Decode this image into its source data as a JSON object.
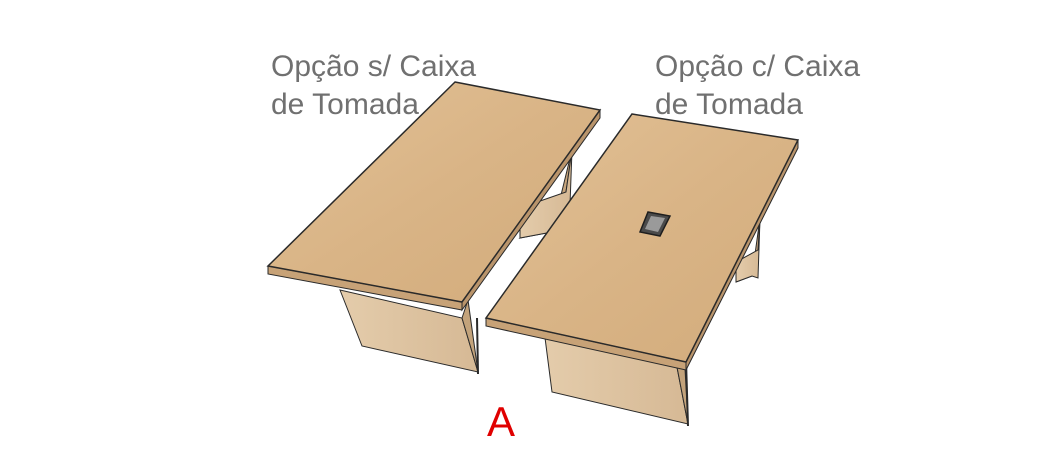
{
  "labels": {
    "without_box": {
      "line1": "Opção s/ Caixa",
      "line2": "de Tomada"
    },
    "with_box": {
      "line1": "Opção c/ Caixa",
      "line2": "de Tomada"
    }
  },
  "variant_letter": "A",
  "colors": {
    "tabletop": "#dcb88a",
    "tabletop_edge": "#b7936a",
    "leg_front": "#ddc3a1",
    "leg_side": "#c7a983",
    "outline": "#2a2a2a",
    "caption": "#707070",
    "variant_letter": "#e00000",
    "outlet_box": "#8a8a8a"
  }
}
